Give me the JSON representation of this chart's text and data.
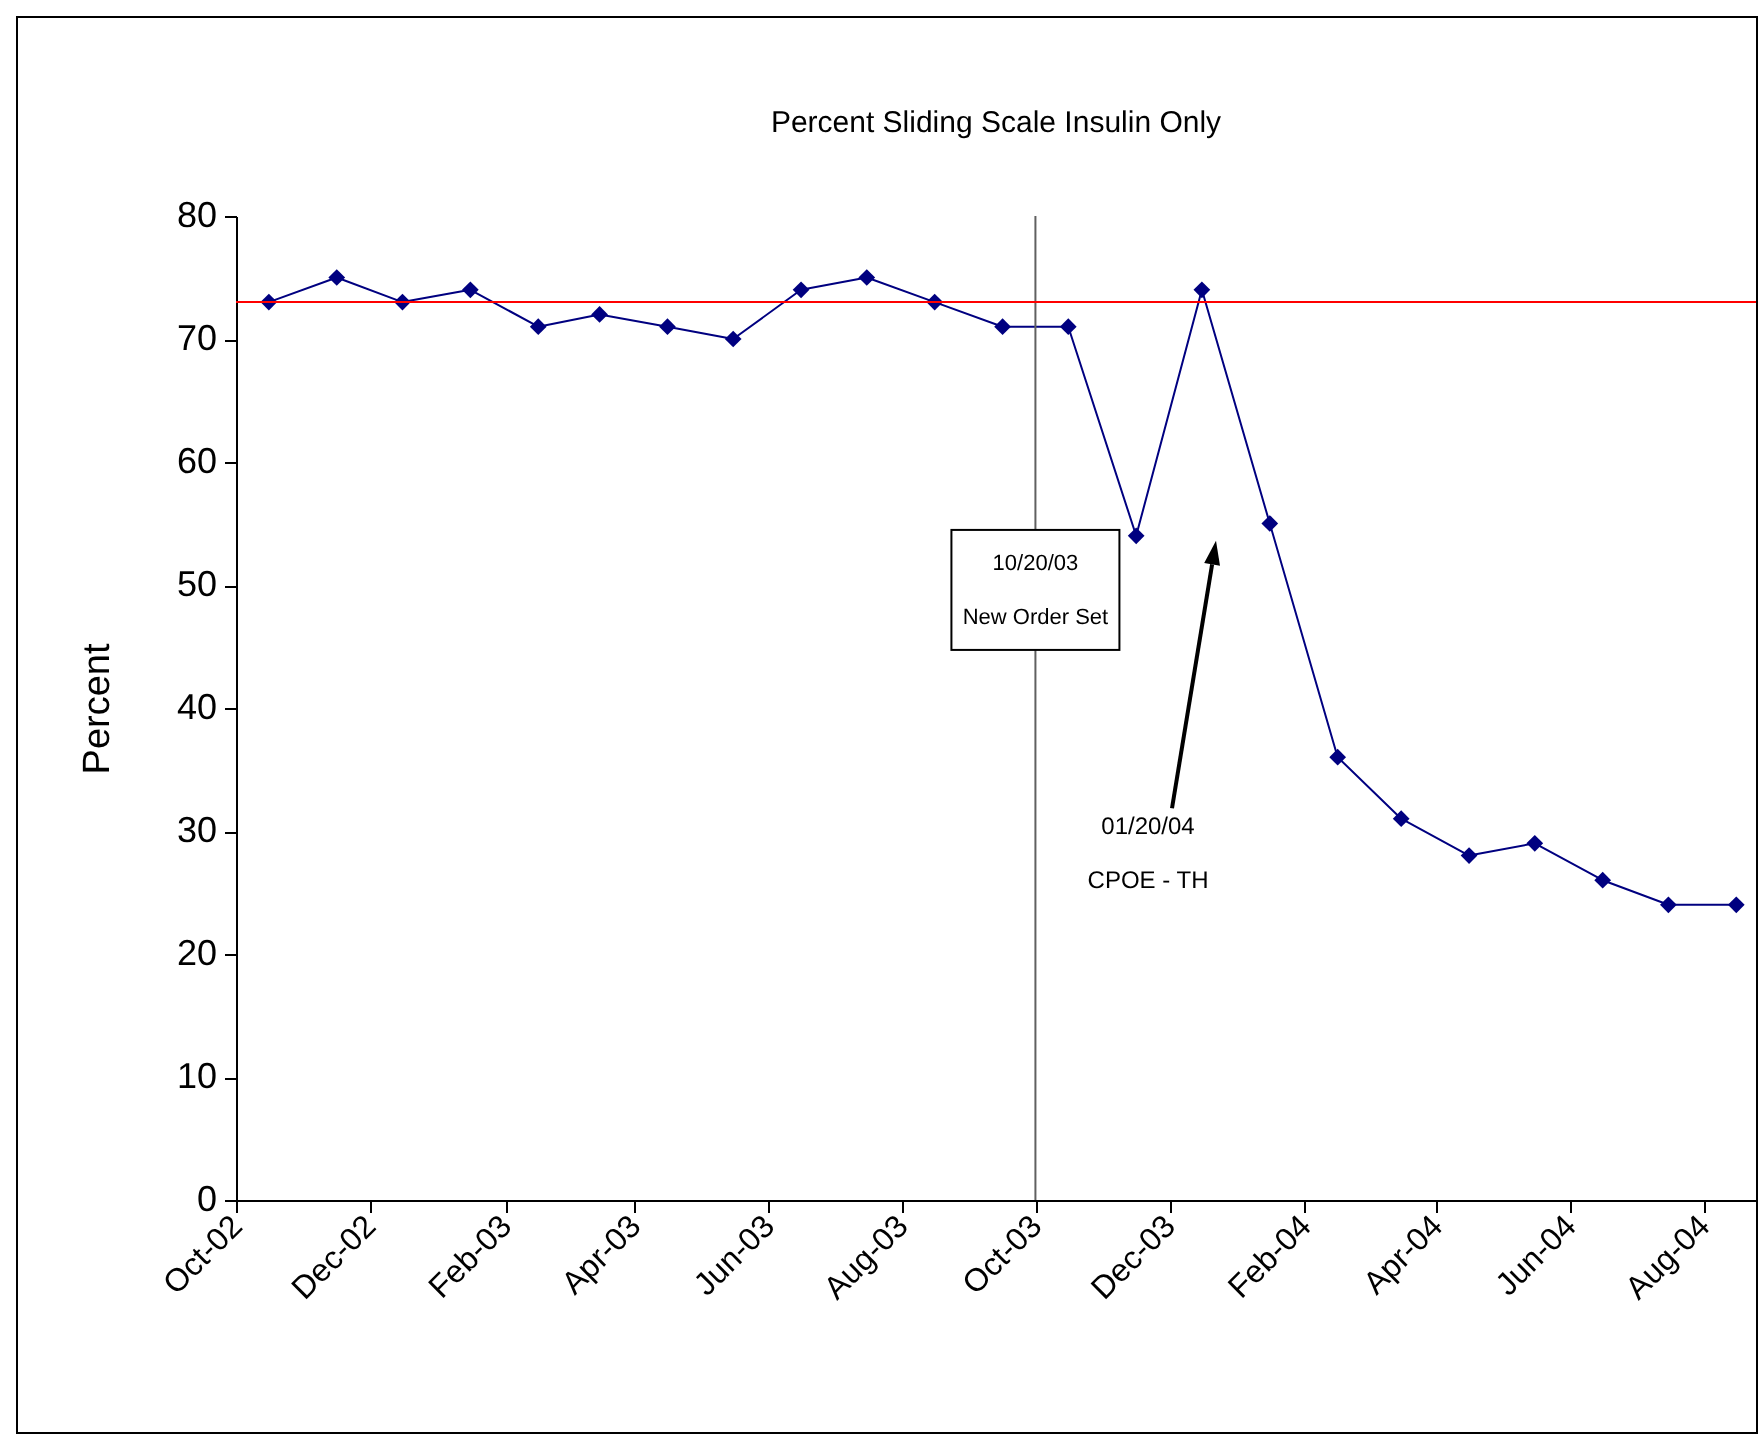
{
  "chart_data": {
    "type": "line",
    "title": "Percent Sliding Scale Insulin Only",
    "ylabel": "Percent",
    "x": [
      "2002-10-16",
      "2002-11-16",
      "2002-12-16",
      "2003-01-16",
      "2003-02-16",
      "2003-03-16",
      "2003-04-16",
      "2003-05-16",
      "2003-06-16",
      "2003-07-16",
      "2003-08-16",
      "2003-09-16",
      "2003-10-16",
      "2003-11-16",
      "2003-12-16",
      "2004-01-16",
      "2004-02-16",
      "2004-03-16",
      "2004-04-16",
      "2004-05-16",
      "2004-06-16",
      "2004-07-16",
      "2004-08-16"
    ],
    "series": [
      {
        "color": "#000080",
        "values": [
          73,
          75,
          73,
          74,
          71,
          72,
          71,
          70,
          74,
          75,
          73,
          71,
          71,
          54,
          74,
          55,
          36,
          31,
          28,
          29,
          26,
          24,
          24
        ]
      }
    ],
    "xlim": [
      "2002-10-01",
      "2004-08-25"
    ],
    "xticks": [
      {
        "value": "2002-10-01",
        "label": "Oct-02"
      },
      {
        "value": "2002-12-01",
        "label": "Dec-02"
      },
      {
        "value": "2003-02-01",
        "label": "Feb-03"
      },
      {
        "value": "2003-04-01",
        "label": "Apr-03"
      },
      {
        "value": "2003-06-01",
        "label": "Jun-03"
      },
      {
        "value": "2003-08-01",
        "label": "Aug-03"
      },
      {
        "value": "2003-10-01",
        "label": "Oct-03"
      },
      {
        "value": "2003-12-01",
        "label": "Dec-03"
      },
      {
        "value": "2004-02-01",
        "label": "Feb-04"
      },
      {
        "value": "2004-04-01",
        "label": "Apr-04"
      },
      {
        "value": "2004-06-01",
        "label": "Jun-04"
      },
      {
        "value": "2004-08-01",
        "label": "Aug-04"
      }
    ],
    "ylim": [
      0,
      80
    ],
    "yticks": [
      0,
      10,
      20,
      30,
      40,
      50,
      60,
      70,
      80
    ],
    "marker": "diamond",
    "ref_lines": [
      {
        "axis": "y",
        "value": 73,
        "color": "#ff0000"
      },
      {
        "axis": "x",
        "value": "2003-10-01",
        "label": "10/20/03\nNew Order Set",
        "color": "#606060"
      }
    ],
    "annotations": [
      "01/20/04\nCPOE - TH"
    ]
  }
}
